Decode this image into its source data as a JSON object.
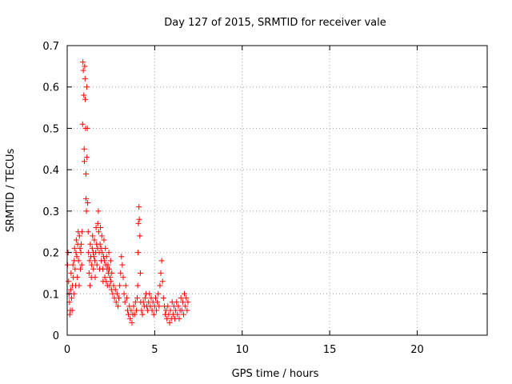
{
  "chart_data": {
    "type": "scatter",
    "title": "Day 127 of 2015, SRMTID for receiver vale",
    "xlabel": "GPS time / hours",
    "ylabel": "SRMTID / TECUs",
    "xlim": [
      0,
      24
    ],
    "ylim": [
      0,
      0.7
    ],
    "xticks": [
      "0",
      "5",
      "10",
      "15",
      "20"
    ],
    "xtick_values": [
      0,
      5,
      10,
      15,
      20
    ],
    "yticks": [
      "0",
      "0.1",
      "0.2",
      "0.3",
      "0.4",
      "0.5",
      "0.6",
      "0.7"
    ],
    "ytick_values": [
      0,
      0.1,
      0.2,
      0.3,
      0.4,
      0.5,
      0.6,
      0.7
    ],
    "grid": true,
    "marker": "+",
    "series": [
      {
        "name": "SRMTID",
        "color": "#ff0000",
        "points": [
          [
            0.02,
            0.17
          ],
          [
            0.05,
            0.2
          ],
          [
            0.08,
            0.13
          ],
          [
            0.1,
            0.1
          ],
          [
            0.13,
            0.08
          ],
          [
            0.15,
            0.05
          ],
          [
            0.18,
            0.06
          ],
          [
            0.2,
            0.11
          ],
          [
            0.22,
            0.15
          ],
          [
            0.25,
            0.09
          ],
          [
            0.28,
            0.06
          ],
          [
            0.3,
            0.12
          ],
          [
            0.33,
            0.17
          ],
          [
            0.35,
            0.14
          ],
          [
            0.38,
            0.1
          ],
          [
            0.4,
            0.18
          ],
          [
            0.42,
            0.21
          ],
          [
            0.45,
            0.16
          ],
          [
            0.48,
            0.12
          ],
          [
            0.5,
            0.2
          ],
          [
            0.52,
            0.23
          ],
          [
            0.55,
            0.19
          ],
          [
            0.58,
            0.14
          ],
          [
            0.6,
            0.22
          ],
          [
            0.63,
            0.25
          ],
          [
            0.65,
            0.18
          ],
          [
            0.68,
            0.12
          ],
          [
            0.7,
            0.24
          ],
          [
            0.73,
            0.21
          ],
          [
            0.75,
            0.16
          ],
          [
            0.78,
            0.2
          ],
          [
            0.8,
            0.22
          ],
          [
            0.83,
            0.17
          ],
          [
            0.85,
            0.25
          ],
          [
            0.88,
            0.51
          ],
          [
            0.9,
            0.66
          ],
          [
            0.92,
            0.64
          ],
          [
            0.95,
            0.58
          ],
          [
            0.97,
            0.45
          ],
          [
            0.98,
            0.42
          ],
          [
            1.0,
            0.65
          ],
          [
            1.02,
            0.62
          ],
          [
            1.03,
            0.57
          ],
          [
            1.05,
            0.5
          ],
          [
            1.07,
            0.39
          ],
          [
            1.08,
            0.33
          ],
          [
            1.1,
            0.3
          ],
          [
            1.12,
            0.6
          ],
          [
            1.13,
            0.43
          ],
          [
            1.15,
            0.5
          ],
          [
            1.17,
            0.32
          ],
          [
            1.2,
            0.25
          ],
          [
            1.22,
            0.2
          ],
          [
            1.25,
            0.15
          ],
          [
            1.28,
            0.18
          ],
          [
            1.3,
            0.12
          ],
          [
            1.32,
            0.22
          ],
          [
            1.35,
            0.19
          ],
          [
            1.38,
            0.14
          ],
          [
            1.4,
            0.17
          ],
          [
            1.43,
            0.21
          ],
          [
            1.45,
            0.24
          ],
          [
            1.48,
            0.2
          ],
          [
            1.5,
            0.16
          ],
          [
            1.53,
            0.19
          ],
          [
            1.55,
            0.23
          ],
          [
            1.58,
            0.18
          ],
          [
            1.6,
            0.14
          ],
          [
            1.63,
            0.2
          ],
          [
            1.65,
            0.26
          ],
          [
            1.68,
            0.22
          ],
          [
            1.7,
            0.17
          ],
          [
            1.73,
            0.21
          ],
          [
            1.75,
            0.27
          ],
          [
            1.78,
            0.3
          ],
          [
            1.8,
            0.25
          ],
          [
            1.83,
            0.2
          ],
          [
            1.85,
            0.16
          ],
          [
            1.88,
            0.22
          ],
          [
            1.9,
            0.26
          ],
          [
            1.93,
            0.21
          ],
          [
            1.95,
            0.18
          ],
          [
            1.98,
            0.24
          ],
          [
            2.0,
            0.2
          ],
          [
            2.03,
            0.16
          ],
          [
            2.05,
            0.13
          ],
          [
            2.08,
            0.19
          ],
          [
            2.1,
            0.23
          ],
          [
            2.13,
            0.18
          ],
          [
            2.15,
            0.14
          ],
          [
            2.18,
            0.21
          ],
          [
            2.2,
            0.17
          ],
          [
            2.23,
            0.13
          ],
          [
            2.25,
            0.19
          ],
          [
            2.28,
            0.16
          ],
          [
            2.3,
            0.12
          ],
          [
            2.33,
            0.17
          ],
          [
            2.35,
            0.15
          ],
          [
            2.38,
            0.2
          ],
          [
            2.4,
            0.16
          ],
          [
            2.43,
            0.12
          ],
          [
            2.45,
            0.14
          ],
          [
            2.48,
            0.18
          ],
          [
            2.5,
            0.13
          ],
          [
            2.53,
            0.11
          ],
          [
            2.55,
            0.15
          ],
          [
            2.6,
            0.1
          ],
          [
            2.65,
            0.12
          ],
          [
            2.7,
            0.09
          ],
          [
            2.75,
            0.11
          ],
          [
            2.8,
            0.08
          ],
          [
            2.85,
            0.1
          ],
          [
            2.9,
            0.07
          ],
          [
            2.95,
            0.09
          ],
          [
            3.0,
            0.12
          ],
          [
            3.05,
            0.15
          ],
          [
            3.1,
            0.19
          ],
          [
            3.15,
            0.17
          ],
          [
            3.2,
            0.14
          ],
          [
            3.25,
            0.1
          ],
          [
            3.3,
            0.08
          ],
          [
            3.35,
            0.12
          ],
          [
            3.4,
            0.09
          ],
          [
            3.45,
            0.06
          ],
          [
            3.5,
            0.05
          ],
          [
            3.55,
            0.07
          ],
          [
            3.6,
            0.04
          ],
          [
            3.65,
            0.06
          ],
          [
            3.7,
            0.03
          ],
          [
            3.75,
            0.05
          ],
          [
            3.8,
            0.07
          ],
          [
            3.85,
            0.05
          ],
          [
            3.9,
            0.08
          ],
          [
            3.95,
            0.06
          ],
          [
            4.0,
            0.09
          ],
          [
            4.03,
            0.12
          ],
          [
            4.05,
            0.2
          ],
          [
            4.07,
            0.27
          ],
          [
            4.1,
            0.31
          ],
          [
            4.12,
            0.28
          ],
          [
            4.15,
            0.24
          ],
          [
            4.18,
            0.15
          ],
          [
            4.2,
            0.08
          ],
          [
            4.25,
            0.06
          ],
          [
            4.3,
            0.05
          ],
          [
            4.35,
            0.08
          ],
          [
            4.4,
            0.07
          ],
          [
            4.45,
            0.09
          ],
          [
            4.5,
            0.1
          ],
          [
            4.55,
            0.07
          ],
          [
            4.6,
            0.06
          ],
          [
            4.65,
            0.08
          ],
          [
            4.7,
            0.1
          ],
          [
            4.75,
            0.07
          ],
          [
            4.8,
            0.09
          ],
          [
            4.85,
            0.06
          ],
          [
            4.9,
            0.08
          ],
          [
            4.95,
            0.05
          ],
          [
            5.0,
            0.07
          ],
          [
            5.05,
            0.09
          ],
          [
            5.1,
            0.06
          ],
          [
            5.15,
            0.08
          ],
          [
            5.2,
            0.1
          ],
          [
            5.25,
            0.07
          ],
          [
            5.3,
            0.12
          ],
          [
            5.35,
            0.15
          ],
          [
            5.4,
            0.18
          ],
          [
            5.45,
            0.13
          ],
          [
            5.5,
            0.09
          ],
          [
            5.55,
            0.07
          ],
          [
            5.6,
            0.05
          ],
          [
            5.65,
            0.06
          ],
          [
            5.7,
            0.04
          ],
          [
            5.75,
            0.07
          ],
          [
            5.8,
            0.05
          ],
          [
            5.85,
            0.03
          ],
          [
            5.9,
            0.06
          ],
          [
            5.95,
            0.04
          ],
          [
            6.0,
            0.08
          ],
          [
            6.05,
            0.05
          ],
          [
            6.1,
            0.07
          ],
          [
            6.15,
            0.04
          ],
          [
            6.2,
            0.06
          ],
          [
            6.25,
            0.08
          ],
          [
            6.3,
            0.05
          ],
          [
            6.35,
            0.07
          ],
          [
            6.4,
            0.04
          ],
          [
            6.45,
            0.06
          ],
          [
            6.5,
            0.09
          ],
          [
            6.55,
            0.06
          ],
          [
            6.6,
            0.08
          ],
          [
            6.65,
            0.05
          ],
          [
            6.7,
            0.1
          ],
          [
            6.75,
            0.07
          ],
          [
            6.8,
            0.09
          ],
          [
            6.85,
            0.06
          ],
          [
            6.9,
            0.08
          ]
        ]
      }
    ]
  }
}
